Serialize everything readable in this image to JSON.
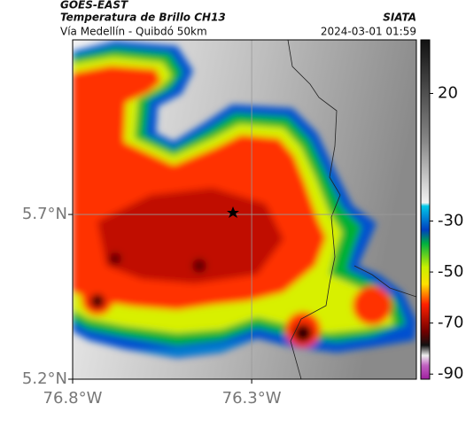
{
  "header": {
    "satellite": "GOES-EAST",
    "product": "Temperatura de Brillo CH13",
    "source": "SIATA",
    "region": "Vía Medellín - Quibdó 50km",
    "timestamp": "2024-03-01 01:59"
  },
  "map": {
    "xlim": [
      -76.8,
      -75.84
    ],
    "ylim": [
      5.2,
      6.23
    ],
    "yticks": [
      {
        "value": 5.7,
        "label": "5.7°N"
      },
      {
        "value": 5.2,
        "label": "5.2°N"
      }
    ],
    "xticks": [
      {
        "value": -76.8,
        "label": "76.8°W"
      },
      {
        "value": -76.3,
        "label": "76.3°W"
      }
    ],
    "grid": true
  },
  "colorbar": {
    "lim": [
      41,
      -92
    ],
    "ticks": [
      20,
      -30,
      -50,
      -70,
      -90
    ]
  }
}
